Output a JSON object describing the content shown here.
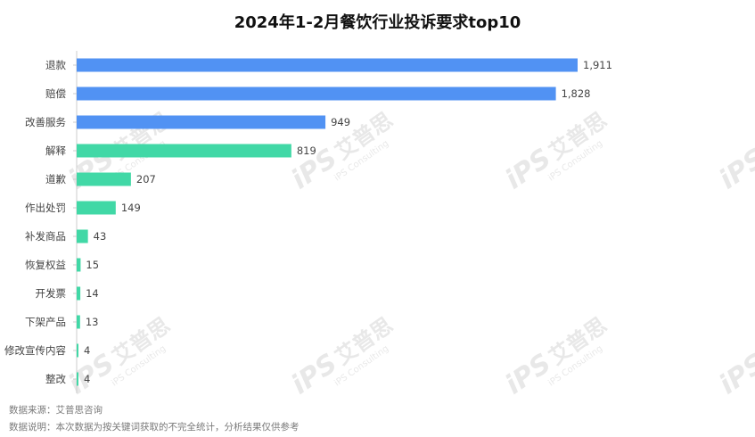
{
  "title": "2024年1-2月餐饮行业投诉要求top10",
  "footnotes": {
    "source": "数据来源：艾普思咨询",
    "note": "数据说明：本次数据为按关键词获取的不完全统计，分析结果仅供参考"
  },
  "watermark": {
    "logo": "iPS",
    "brand": "艾普思",
    "subtitle": "iPS Consulting"
  },
  "colors": {
    "blue": "#5192f3",
    "green": "#41d8a6",
    "axis": "#cccccc",
    "label": "#444444"
  },
  "chart_data": {
    "type": "bar",
    "orientation": "horizontal",
    "categories": [
      "退款",
      "赔偿",
      "改善服务",
      "解释",
      "道歉",
      "作出处罚",
      "补发商品",
      "恢复权益",
      "开发票",
      "下架产品",
      "修改宣传内容",
      "整改"
    ],
    "values": [
      1911,
      1828,
      949,
      819,
      207,
      149,
      43,
      15,
      14,
      13,
      4,
      4
    ],
    "value_labels": [
      "1,911",
      "1,828",
      "949",
      "819",
      "207",
      "149",
      "43",
      "15",
      "14",
      "13",
      "4",
      "4"
    ],
    "bar_colors": [
      "blue",
      "blue",
      "blue",
      "green",
      "green",
      "green",
      "green",
      "green",
      "green",
      "green",
      "green",
      "green"
    ],
    "xlim": [
      0,
      1911
    ],
    "grid": false,
    "legend": "none"
  }
}
